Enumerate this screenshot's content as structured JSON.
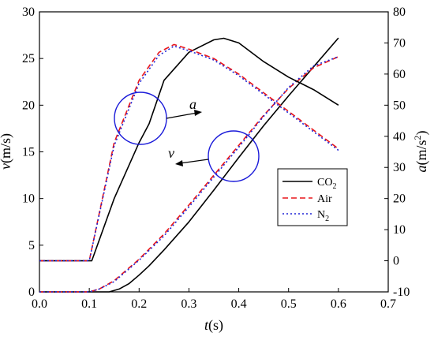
{
  "chart_data": {
    "type": "line",
    "title": "",
    "xlabel_var": "t",
    "xlabel_unit": "(s)",
    "ylabel_left_var": "v",
    "ylabel_left_unit": "(m/s)",
    "ylabel_right_var": "a",
    "ylabel_right_unit_pre": "(m/s",
    "ylabel_right_unit_sup": "2",
    "ylabel_right_unit_post": ")",
    "xlim": [
      0.0,
      0.7
    ],
    "ylim_left": [
      0,
      30
    ],
    "ylim_right": [
      -10,
      80
    ],
    "x_ticks": [
      "0.0",
      "0.1",
      "0.2",
      "0.3",
      "0.4",
      "0.5",
      "0.6",
      "0.7"
    ],
    "y_left_ticks": [
      "0",
      "5",
      "10",
      "15",
      "20",
      "25",
      "30"
    ],
    "y_right_ticks": [
      "-10",
      "0",
      "10",
      "20",
      "30",
      "40",
      "50",
      "60",
      "70",
      "80"
    ],
    "grid": false,
    "legend_placement": "center-right",
    "legend": [
      {
        "key": "co2",
        "label_main": "CO",
        "label_sub": "2",
        "color": "#000000",
        "dash": "solid"
      },
      {
        "key": "air",
        "label_main": "Air",
        "label_sub": "",
        "color": "#e8161b",
        "dash": "dash"
      },
      {
        "key": "n2",
        "label_main": "N",
        "label_sub": "2",
        "color": "#1f24d6",
        "dash": "dot"
      }
    ],
    "annotations": {
      "a_label": "a",
      "v_label": "v"
    },
    "series": [
      {
        "key": "v_co2",
        "quantity": "v",
        "axis": "left",
        "color": "#000000",
        "dash": "solid",
        "x": [
          0.0,
          0.14,
          0.16,
          0.18,
          0.2,
          0.22,
          0.25,
          0.3,
          0.35,
          0.4,
          0.45,
          0.5,
          0.55,
          0.6
        ],
        "y": [
          0.0,
          0.0,
          0.3,
          0.9,
          1.8,
          2.8,
          4.5,
          7.5,
          10.9,
          14.4,
          17.8,
          21.0,
          24.1,
          27.2
        ]
      },
      {
        "key": "v_air",
        "quantity": "v",
        "axis": "left",
        "color": "#e8161b",
        "dash": "dash",
        "x": [
          0.0,
          0.1,
          0.12,
          0.15,
          0.2,
          0.25,
          0.3,
          0.35,
          0.4,
          0.45,
          0.5,
          0.55,
          0.6
        ],
        "y": [
          0.0,
          0.0,
          0.3,
          1.2,
          3.5,
          6.2,
          9.3,
          12.5,
          15.7,
          18.9,
          21.8,
          24.0,
          25.2
        ]
      },
      {
        "key": "v_n2",
        "quantity": "v",
        "axis": "left",
        "color": "#1f24d6",
        "dash": "dot",
        "x": [
          0.0,
          0.1,
          0.12,
          0.15,
          0.2,
          0.25,
          0.3,
          0.35,
          0.4,
          0.45,
          0.5,
          0.55,
          0.6
        ],
        "y": [
          0.0,
          0.0,
          0.3,
          1.1,
          3.4,
          6.0,
          9.1,
          12.3,
          15.5,
          18.8,
          21.9,
          24.2,
          25.2
        ]
      },
      {
        "key": "a_co2",
        "quantity": "a",
        "axis": "right",
        "color": "#000000",
        "dash": "solid",
        "x": [
          0.0,
          0.105,
          0.15,
          0.2,
          0.22,
          0.25,
          0.3,
          0.35,
          0.37,
          0.4,
          0.45,
          0.5,
          0.55,
          0.6
        ],
        "y": [
          0.0,
          0.0,
          20.0,
          38.0,
          44.0,
          58.0,
          67.0,
          71.0,
          71.5,
          70.0,
          64.0,
          59.0,
          55.0,
          50.0
        ]
      },
      {
        "key": "a_air",
        "quantity": "a",
        "axis": "right",
        "color": "#e8161b",
        "dash": "dash",
        "x": [
          0.0,
          0.1,
          0.15,
          0.2,
          0.24,
          0.27,
          0.3,
          0.35,
          0.4,
          0.45,
          0.5,
          0.55,
          0.6
        ],
        "y": [
          0.0,
          0.0,
          38.0,
          58.0,
          67.0,
          69.5,
          68.0,
          65.0,
          60.0,
          54.0,
          48.0,
          42.0,
          36.0
        ]
      },
      {
        "key": "a_n2",
        "quantity": "a",
        "axis": "right",
        "color": "#1f24d6",
        "dash": "dot",
        "x": [
          0.0,
          0.1,
          0.15,
          0.2,
          0.24,
          0.27,
          0.3,
          0.35,
          0.4,
          0.45,
          0.5,
          0.55,
          0.6
        ],
        "y": [
          0.0,
          0.0,
          37.0,
          57.0,
          66.0,
          69.0,
          67.5,
          64.5,
          59.5,
          53.5,
          47.5,
          41.5,
          35.5
        ]
      }
    ]
  }
}
